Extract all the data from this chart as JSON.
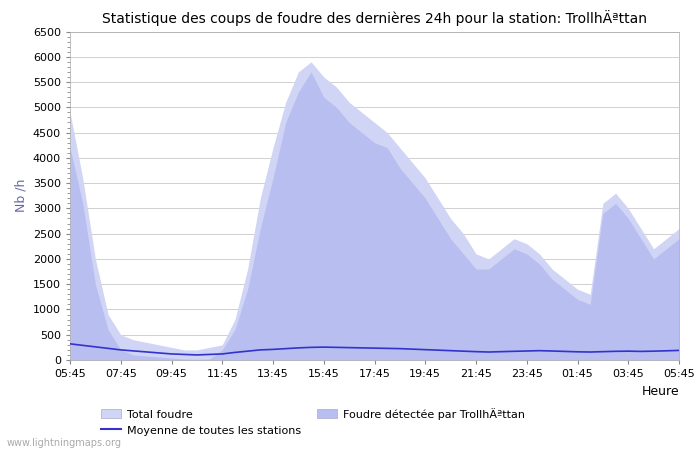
{
  "title": "Statistique des coups de foudre des dernières 24h pour la station: TrollhÄªttan",
  "xlabel": "Heure",
  "ylabel": "Nb /h",
  "ylim": [
    0,
    6500
  ],
  "yticks": [
    0,
    500,
    1000,
    1500,
    2000,
    2500,
    3000,
    3500,
    4000,
    4500,
    5000,
    5500,
    6000,
    6500
  ],
  "xtick_labels": [
    "05:45",
    "07:45",
    "09:45",
    "11:45",
    "13:45",
    "15:45",
    "17:45",
    "19:45",
    "21:45",
    "23:45",
    "01:45",
    "03:45",
    "05:45"
  ],
  "bg_color": "#ffffff",
  "plot_bg_color": "#ffffff",
  "grid_color": "#d0d0d0",
  "fill_total_color": "#d0d4f5",
  "fill_local_color": "#b8bef0",
  "line_avg_color": "#3333cc",
  "watermark": "www.lightningmaps.org",
  "legend_total": "Total foudre",
  "legend_moyenne": "Moyenne de toutes les stations",
  "legend_local": "Foudre détectée par TrollhÄªttan",
  "total_foudre": [
    4900,
    3600,
    2000,
    900,
    500,
    400,
    350,
    300,
    250,
    200,
    200,
    250,
    300,
    800,
    1800,
    3200,
    4200,
    5100,
    5700,
    5900,
    5600,
    5400,
    5100,
    4900,
    4700,
    4500,
    4200,
    3900,
    3600,
    3200,
    2800,
    2500,
    2100,
    2000,
    2200,
    2400,
    2300,
    2100,
    1800,
    1600,
    1400,
    1300,
    3100,
    3300,
    3000,
    2600,
    2200,
    2400,
    2600
  ],
  "moyenne_stations": [
    320,
    290,
    260,
    230,
    200,
    180,
    160,
    140,
    120,
    110,
    100,
    110,
    120,
    150,
    175,
    200,
    210,
    225,
    240,
    250,
    255,
    250,
    245,
    240,
    235,
    230,
    225,
    215,
    205,
    195,
    185,
    175,
    165,
    158,
    165,
    172,
    178,
    185,
    178,
    170,
    162,
    158,
    165,
    172,
    175,
    170,
    175,
    182,
    190
  ],
  "local_foudre": [
    4200,
    3100,
    1500,
    600,
    200,
    100,
    80,
    60,
    40,
    20,
    15,
    20,
    200,
    600,
    1400,
    2600,
    3600,
    4700,
    5300,
    5700,
    5200,
    5000,
    4700,
    4500,
    4300,
    4200,
    3800,
    3500,
    3200,
    2800,
    2400,
    2100,
    1800,
    1800,
    2000,
    2200,
    2100,
    1900,
    1600,
    1400,
    1200,
    1100,
    2900,
    3100,
    2800,
    2400,
    2000,
    2200,
    2400
  ],
  "n_points": 49
}
